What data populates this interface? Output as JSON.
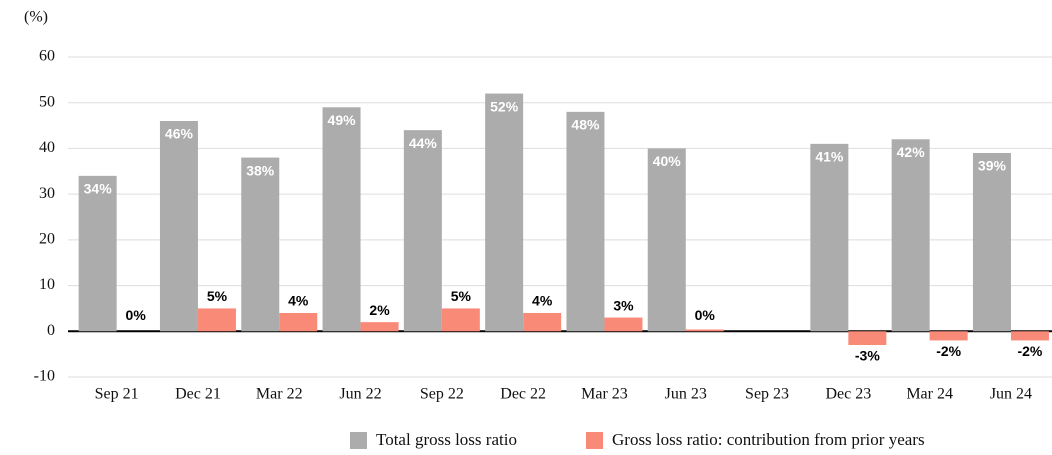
{
  "chart_data": {
    "type": "bar",
    "y_unit_label": "(%)",
    "categories": [
      "Sep 21",
      "Dec 21",
      "Mar 22",
      "Jun 22",
      "Sep 22",
      "Dec 22",
      "Mar 23",
      "Jun 23",
      "Sep 23",
      "Dec 23",
      "Mar 24",
      "Jun 24"
    ],
    "series": [
      {
        "name": "Total gross loss ratio",
        "color": "#acacac",
        "values": [
          34,
          46,
          38,
          49,
          44,
          52,
          48,
          40,
          null,
          41,
          42,
          39
        ],
        "value_labels": [
          "34%",
          "46%",
          "38%",
          "49%",
          "44%",
          "52%",
          "48%",
          "40%",
          null,
          "41%",
          "42%",
          "39%"
        ]
      },
      {
        "name": "Gross loss ratio: contribution from prior years",
        "color": "#fa8a78",
        "values": [
          0,
          5,
          4,
          2,
          5,
          4,
          3,
          0.4,
          null,
          -3,
          -2,
          -2
        ],
        "value_labels": [
          "0%",
          "5%",
          "4%",
          "2%",
          "5%",
          "4%",
          "3%",
          "0%",
          null,
          "-3%",
          "-2%",
          "-2%"
        ]
      }
    ],
    "ylim": [
      -10,
      60
    ],
    "yticks": [
      -10,
      0,
      10,
      20,
      30,
      40,
      50,
      60
    ],
    "grid": true,
    "legend": "bottom"
  }
}
